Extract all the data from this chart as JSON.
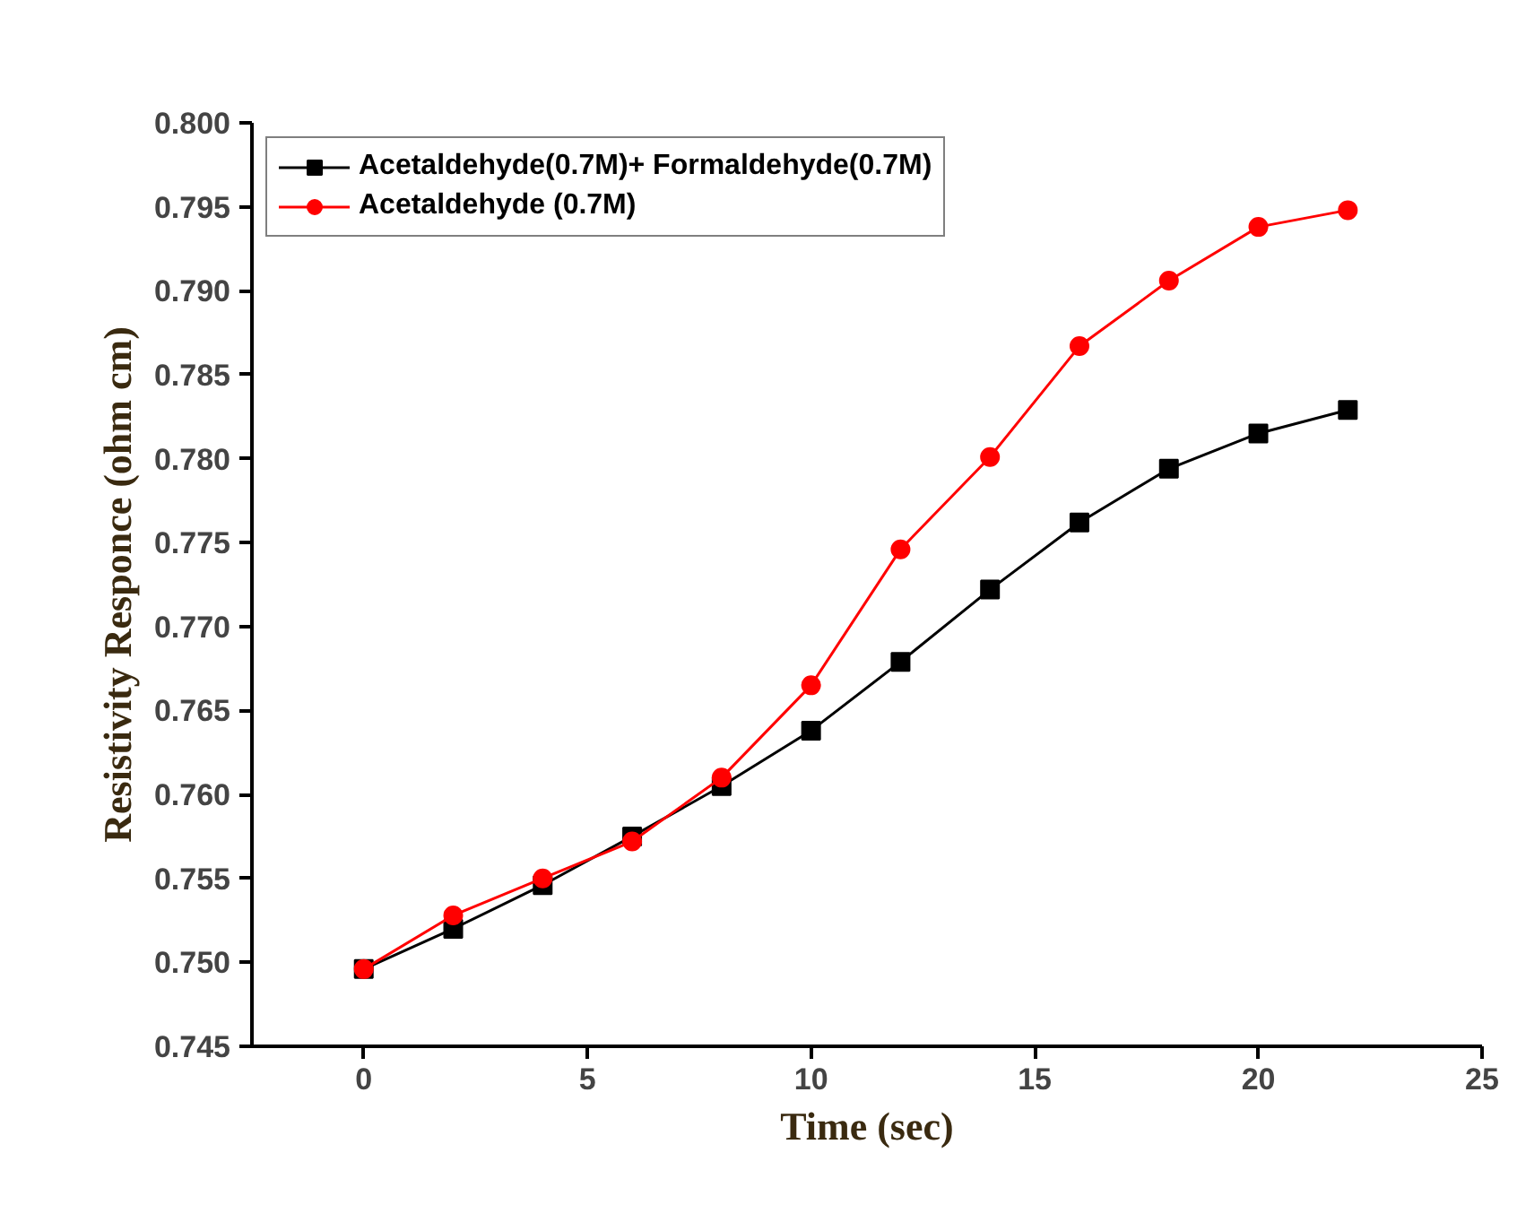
{
  "chart_data": {
    "type": "line",
    "xlabel": "Time (sec)",
    "ylabel": "Resistivity Responce (ohm cm)",
    "x": [
      0,
      2,
      4,
      6,
      8,
      10,
      12,
      14,
      16,
      18,
      20,
      22
    ],
    "series": [
      {
        "name": "Acetaldehyde(0.7M)+ Formaldehyde(0.7M)",
        "color": "#000000",
        "marker": "square",
        "values": [
          0.7496,
          0.752,
          0.7546,
          0.7575,
          0.7605,
          0.7638,
          0.7679,
          0.7722,
          0.7762,
          0.7794,
          0.7815,
          0.7829
        ]
      },
      {
        "name": "Acetaldehyde (0.7M)",
        "color": "#ff0000",
        "marker": "circle",
        "values": [
          0.7496,
          0.7528,
          0.755,
          0.7572,
          0.761,
          0.7665,
          0.7746,
          0.7801,
          0.7867,
          0.7906,
          0.7938,
          0.7948
        ]
      }
    ],
    "xlim": [
      -2.5,
      25
    ],
    "xticks": [
      0,
      5,
      10,
      15,
      20,
      25
    ],
    "ylim": [
      0.745,
      0.8
    ],
    "yticks": [
      {
        "value": 0.745,
        "label": "0.745"
      },
      {
        "value": 0.75,
        "label": "0.750"
      },
      {
        "value": 0.755,
        "label": "0.755"
      },
      {
        "value": 0.76,
        "label": "0.760"
      },
      {
        "value": 0.765,
        "label": "0.765"
      },
      {
        "value": 0.77,
        "label": "0.770"
      },
      {
        "value": 0.775,
        "label": "0.775"
      },
      {
        "value": 0.78,
        "label": "0.780"
      },
      {
        "value": 0.785,
        "label": "0.785"
      },
      {
        "value": 0.79,
        "label": "0.790"
      },
      {
        "value": 0.795,
        "label": "0.795"
      },
      {
        "value": 0.8,
        "label": "0.800"
      }
    ],
    "grid": false,
    "legend": "top left",
    "line_style": "solid"
  }
}
